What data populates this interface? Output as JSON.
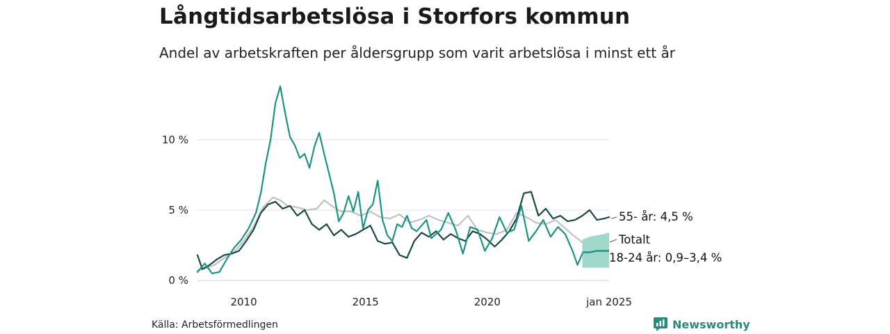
{
  "chart_data": {
    "type": "line",
    "title": "Långtidsarbetslösa i Storfors kommun",
    "subtitle": "Andel av arbetskraften per åldersgrupp som varit arbetslösa i minst ett år",
    "ylim": [
      0,
      14
    ],
    "yticks": [
      {
        "value": 0,
        "label": "0 %"
      },
      {
        "value": 5,
        "label": "5 %"
      },
      {
        "value": 10,
        "label": "10 %"
      }
    ],
    "xlim": [
      2008.1,
      2025.0
    ],
    "xticks": [
      {
        "value": 2010,
        "label": "2010"
      },
      {
        "value": 2015,
        "label": "2015"
      },
      {
        "value": 2020,
        "label": "2020"
      },
      {
        "value": 2025,
        "label": "jan 2025"
      }
    ],
    "series": [
      {
        "name": "Totalt",
        "label": "Totalt",
        "color": "#c3bfc6",
        "x": [
          2008.1,
          2008.5,
          2008.8,
          2009.2,
          2009.6,
          2010.0,
          2010.4,
          2010.8,
          2011.2,
          2011.5,
          2011.8,
          2012.2,
          2012.6,
          2013.0,
          2013.3,
          2013.7,
          2014.0,
          2014.4,
          2014.8,
          2015.2,
          2015.6,
          2016.0,
          2016.4,
          2016.8,
          2017.2,
          2017.6,
          2018.0,
          2018.4,
          2018.8,
          2019.2,
          2019.6,
          2020.0,
          2020.4,
          2020.8,
          2021.2,
          2021.6,
          2022.0,
          2022.4,
          2022.8,
          2023.2,
          2023.6,
          2023.9
        ],
        "y": [
          0.7,
          0.9,
          1.1,
          1.6,
          2.0,
          2.8,
          3.8,
          5.2,
          5.9,
          5.7,
          5.3,
          5.2,
          5.0,
          5.1,
          5.7,
          5.2,
          4.9,
          4.9,
          4.6,
          4.9,
          4.5,
          4.4,
          4.7,
          4.1,
          4.3,
          4.6,
          4.3,
          4.1,
          3.9,
          4.6,
          3.6,
          3.4,
          3.3,
          3.6,
          4.8,
          4.5,
          4.1,
          4.0,
          4.3,
          3.7,
          3.1,
          2.7
        ]
      },
      {
        "name": "55- år",
        "label": "55- år: 4,5 %",
        "color": "#17493f",
        "x": [
          2008.1,
          2008.3,
          2008.6,
          2008.9,
          2009.2,
          2009.5,
          2009.8,
          2010.1,
          2010.4,
          2010.7,
          2011.0,
          2011.3,
          2011.6,
          2011.9,
          2012.2,
          2012.5,
          2012.8,
          2013.1,
          2013.4,
          2013.7,
          2014.0,
          2014.3,
          2014.6,
          2014.9,
          2015.2,
          2015.5,
          2015.8,
          2016.1,
          2016.4,
          2016.7,
          2017.0,
          2017.3,
          2017.6,
          2017.9,
          2018.2,
          2018.5,
          2018.8,
          2019.1,
          2019.4,
          2019.7,
          2020.0,
          2020.3,
          2020.6,
          2020.9,
          2021.2,
          2021.5,
          2021.8,
          2022.1,
          2022.4,
          2022.7,
          2023.0,
          2023.3,
          2023.6,
          2023.9,
          2024.2,
          2024.5,
          2024.8,
          2025.0
        ],
        "y": [
          1.8,
          0.8,
          1.1,
          1.5,
          1.8,
          1.9,
          2.1,
          2.8,
          3.6,
          4.8,
          5.4,
          5.6,
          5.1,
          5.3,
          4.6,
          5.0,
          4.0,
          3.6,
          4.0,
          3.2,
          3.6,
          3.1,
          3.3,
          3.6,
          3.9,
          2.8,
          2.6,
          2.7,
          1.8,
          1.6,
          2.8,
          3.4,
          3.1,
          3.5,
          2.9,
          3.3,
          3.0,
          2.8,
          3.5,
          3.3,
          2.9,
          2.4,
          2.9,
          3.5,
          4.4,
          6.2,
          6.3,
          4.6,
          5.1,
          4.4,
          4.6,
          4.2,
          4.3,
          4.6,
          5.0,
          4.3,
          4.4,
          4.5
        ]
      },
      {
        "name": "18-24 år",
        "label": "18-24 år: 0,9–3,4 %",
        "color": "#1b9382",
        "x": [
          2008.1,
          2008.4,
          2008.7,
          2009.0,
          2009.3,
          2009.6,
          2009.9,
          2010.2,
          2010.5,
          2010.7,
          2010.9,
          2011.1,
          2011.3,
          2011.5,
          2011.7,
          2011.9,
          2012.1,
          2012.3,
          2012.5,
          2012.7,
          2012.9,
          2013.1,
          2013.3,
          2013.5,
          2013.7,
          2013.9,
          2014.1,
          2014.3,
          2014.5,
          2014.7,
          2014.9,
          2015.1,
          2015.3,
          2015.5,
          2015.7,
          2015.9,
          2016.1,
          2016.3,
          2016.5,
          2016.7,
          2016.9,
          2017.1,
          2017.3,
          2017.5,
          2017.7,
          2017.9,
          2018.1,
          2018.4,
          2018.7,
          2019.0,
          2019.3,
          2019.6,
          2019.9,
          2020.2,
          2020.5,
          2020.8,
          2021.1,
          2021.4,
          2021.7,
          2022.0,
          2022.3,
          2022.6,
          2022.9,
          2023.2,
          2023.5,
          2023.7,
          2023.9
        ],
        "y": [
          0.6,
          1.2,
          0.5,
          0.6,
          1.5,
          2.3,
          2.9,
          3.7,
          4.8,
          6.2,
          8.3,
          10.0,
          12.6,
          13.8,
          11.9,
          10.2,
          9.6,
          8.7,
          9.0,
          8.0,
          9.5,
          10.5,
          9.0,
          7.6,
          6.2,
          4.2,
          4.8,
          6.0,
          4.9,
          6.3,
          3.7,
          5.0,
          5.4,
          7.1,
          4.3,
          3.2,
          2.8,
          4.0,
          3.8,
          4.6,
          3.7,
          3.5,
          3.9,
          4.3,
          3.0,
          3.3,
          3.6,
          4.8,
          3.6,
          1.9,
          3.8,
          3.6,
          2.1,
          3.0,
          4.5,
          3.4,
          3.6,
          5.3,
          2.8,
          3.5,
          4.3,
          3.1,
          3.8,
          3.3,
          2.1,
          1.1,
          1.9
        ]
      }
    ],
    "band": {
      "name": "18-24 år (intervall)",
      "color": "#8fd1c3",
      "x": [
        2023.9,
        2024.2,
        2024.5,
        2024.8,
        2025.0
      ],
      "low": [
        0.9,
        0.9,
        0.9,
        0.9,
        0.9
      ],
      "mid": [
        2.0,
        2.0,
        2.1,
        2.1,
        2.1
      ],
      "high": [
        2.9,
        3.1,
        3.2,
        3.3,
        3.4
      ]
    }
  },
  "source": "Källa: Arbetsförmedlingen",
  "brand": {
    "name": "Newsworthy"
  }
}
